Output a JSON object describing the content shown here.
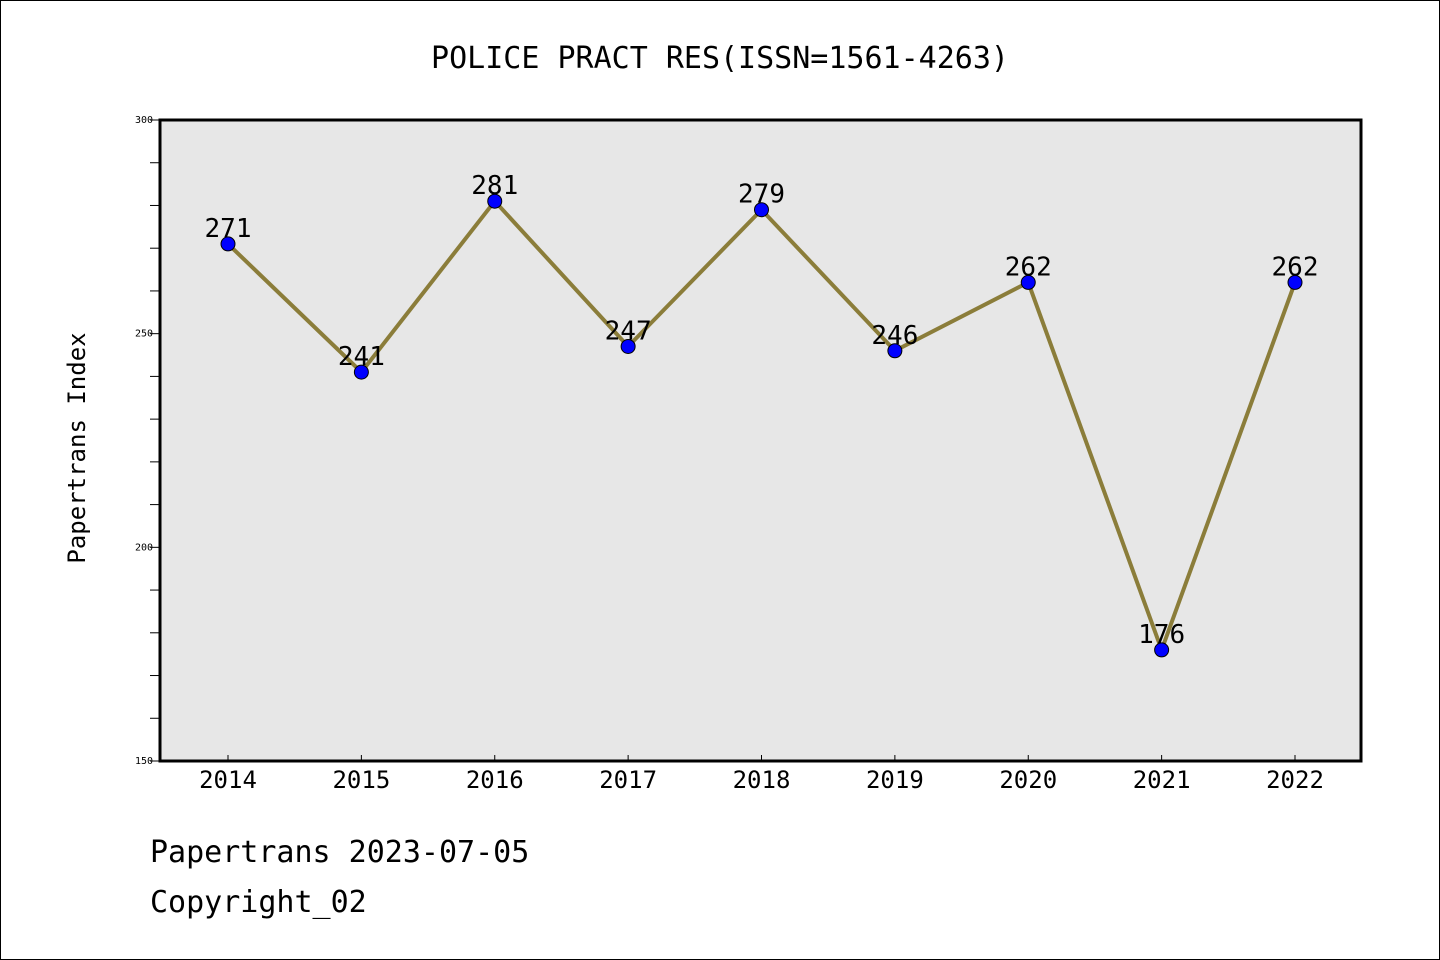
{
  "chart_data": {
    "type": "line",
    "title": "POLICE PRACT RES(ISSN=1561-4263)",
    "xlabel": "",
    "ylabel": "Papertrans Index",
    "categories": [
      "2014",
      "2015",
      "2016",
      "2017",
      "2018",
      "2019",
      "2020",
      "2021",
      "2022"
    ],
    "values": [
      271,
      241,
      281,
      247,
      279,
      246,
      262,
      176,
      262
    ],
    "ylim": [
      150,
      300
    ],
    "yticks": [
      150,
      200,
      250,
      300
    ],
    "grid": false,
    "line_color": "#8B7D3A",
    "marker_color": "#0000FF",
    "plot_background": "#E7E7E7"
  },
  "footer": {
    "date_line": "Papertrans 2023-07-05",
    "copyright_line": "Copyright_02"
  }
}
